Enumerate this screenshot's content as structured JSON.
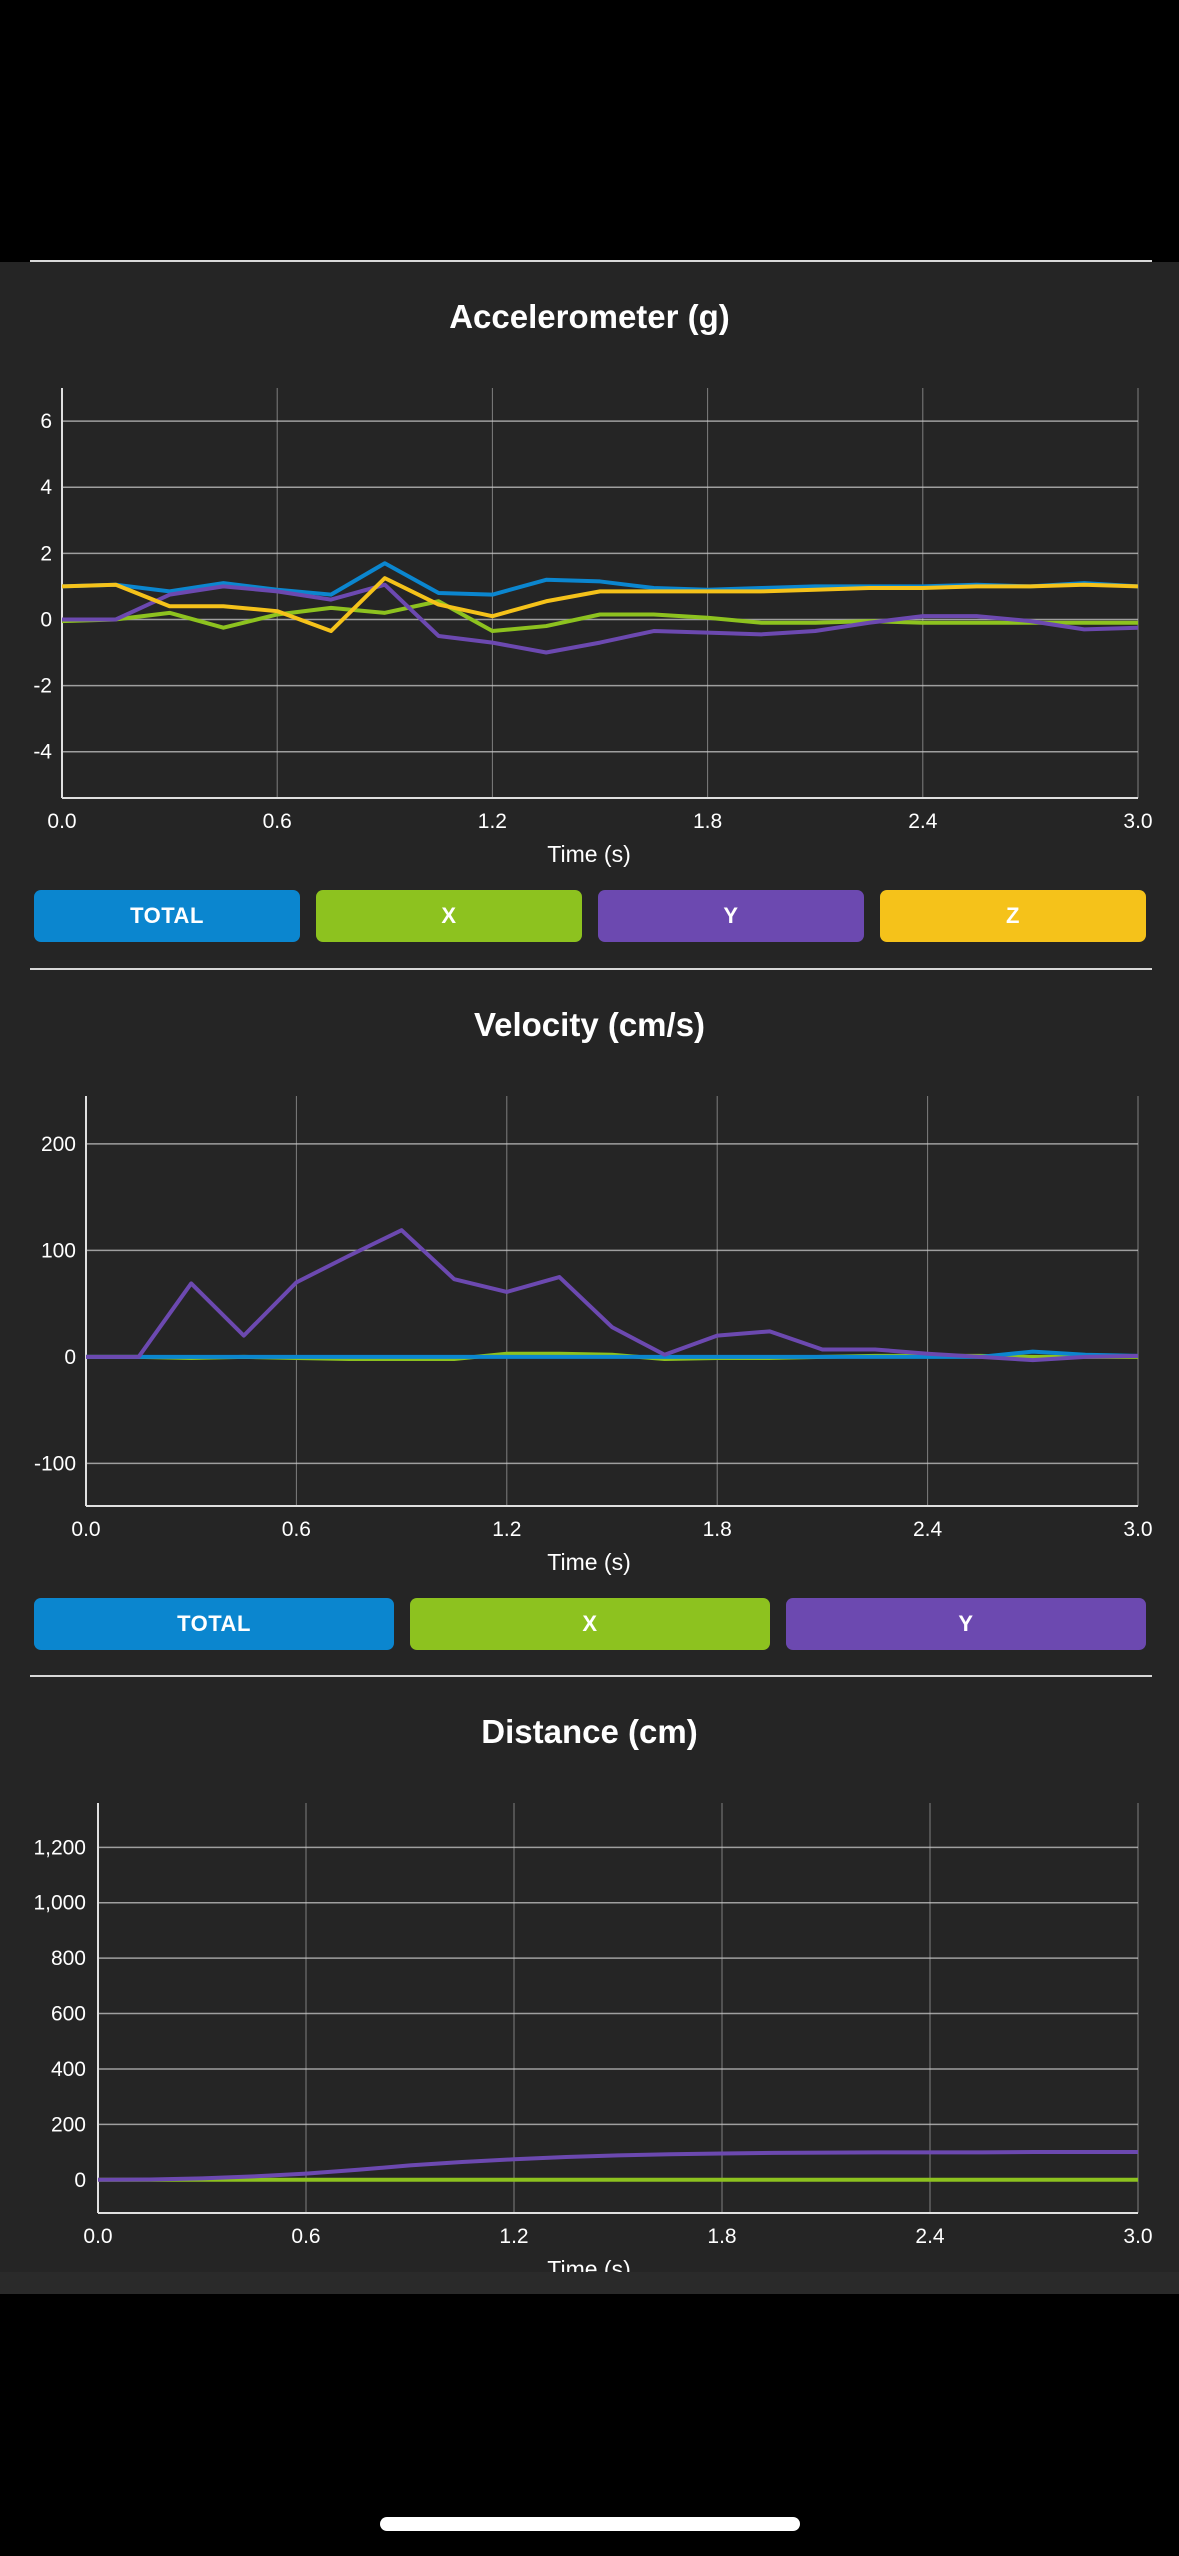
{
  "colors": {
    "total": "#0b86cf",
    "x": "#8dc21f",
    "y": "#6c49b0",
    "z": "#f5c21a",
    "panel": "#252525",
    "grid": "#c8c8c8"
  },
  "charts": [
    {
      "id": "accelerometer",
      "title": "Accelerometer (g)",
      "xlabel": "Time (s)",
      "buttons": [
        {
          "label": "TOTAL",
          "color": "#0b86cf"
        },
        {
          "label": "X",
          "color": "#8dc21f"
        },
        {
          "label": "Y",
          "color": "#6c49b0"
        },
        {
          "label": "Z",
          "color": "#f5c21a"
        }
      ]
    },
    {
      "id": "velocity",
      "title": "Velocity (cm/s)",
      "xlabel": "Time (s)",
      "buttons": [
        {
          "label": "TOTAL",
          "color": "#0b86cf"
        },
        {
          "label": "X",
          "color": "#8dc21f"
        },
        {
          "label": "Y",
          "color": "#6c49b0"
        }
      ]
    },
    {
      "id": "distance",
      "title": "Distance (cm)",
      "xlabel": "Time (s)",
      "buttons": []
    }
  ],
  "chart_data": [
    {
      "type": "line",
      "title": "Accelerometer (g)",
      "xlabel": "Time (s)",
      "ylabel": "",
      "xlim": [
        0,
        3
      ],
      "ylim": [
        -5.4,
        7
      ],
      "xticks": [
        "0.0",
        "0.6",
        "1.2",
        "1.8",
        "2.4",
        "3.0"
      ],
      "yticks": [
        "-4",
        "-2",
        "0",
        "2",
        "4",
        "6"
      ],
      "x": [
        0,
        0.15,
        0.3,
        0.45,
        0.6,
        0.75,
        0.9,
        1.05,
        1.2,
        1.35,
        1.5,
        1.65,
        1.8,
        1.95,
        2.1,
        2.25,
        2.4,
        2.55,
        2.7,
        2.85,
        3.0
      ],
      "series": [
        {
          "name": "TOTAL",
          "color": "#0b86cf",
          "values": [
            1.0,
            1.05,
            0.85,
            1.1,
            0.9,
            0.75,
            1.7,
            0.8,
            0.75,
            1.2,
            1.15,
            0.95,
            0.9,
            0.95,
            1.0,
            1.0,
            1.0,
            1.05,
            1.0,
            1.1,
            1.0
          ]
        },
        {
          "name": "X",
          "color": "#8dc21f",
          "values": [
            -0.05,
            0.0,
            0.2,
            -0.25,
            0.15,
            0.35,
            0.2,
            0.55,
            -0.35,
            -0.2,
            0.15,
            0.15,
            0.05,
            -0.1,
            -0.1,
            -0.05,
            -0.1,
            -0.1,
            -0.1,
            -0.1,
            -0.1
          ]
        },
        {
          "name": "Y",
          "color": "#6c49b0",
          "values": [
            0.0,
            0.0,
            0.75,
            1.0,
            0.85,
            0.6,
            1.05,
            -0.5,
            -0.7,
            -1.0,
            -0.7,
            -0.35,
            -0.4,
            -0.45,
            -0.35,
            -0.1,
            0.1,
            0.1,
            -0.05,
            -0.3,
            -0.25
          ]
        },
        {
          "name": "Z",
          "color": "#f5c21a",
          "values": [
            1.0,
            1.05,
            0.4,
            0.4,
            0.25,
            -0.35,
            1.25,
            0.45,
            0.1,
            0.55,
            0.85,
            0.85,
            0.85,
            0.85,
            0.9,
            0.95,
            0.95,
            1.0,
            1.0,
            1.05,
            1.0
          ]
        }
      ]
    },
    {
      "type": "line",
      "title": "Velocity (cm/s)",
      "xlabel": "Time (s)",
      "ylabel": "",
      "xlim": [
        0,
        3
      ],
      "ylim": [
        -140,
        245
      ],
      "xticks": [
        "0.0",
        "0.6",
        "1.2",
        "1.8",
        "2.4",
        "3.0"
      ],
      "yticks": [
        "-100",
        "0",
        "100",
        "200"
      ],
      "x": [
        0,
        0.15,
        0.3,
        0.45,
        0.6,
        0.75,
        0.9,
        1.05,
        1.2,
        1.35,
        1.5,
        1.65,
        1.8,
        1.95,
        2.1,
        2.25,
        2.4,
        2.55,
        2.7,
        2.85,
        3.0
      ],
      "series": [
        {
          "name": "X",
          "color": "#8dc21f",
          "values": [
            0,
            0,
            -1,
            0,
            -1,
            -2,
            -2,
            -2,
            3,
            3,
            2,
            -2,
            -1,
            -1,
            0,
            1,
            1,
            1,
            0,
            0,
            0
          ]
        },
        {
          "name": "TOTAL",
          "color": "#0b86cf",
          "values": [
            0,
            0,
            0,
            0,
            0,
            0,
            0,
            0,
            0,
            0,
            0,
            0,
            0,
            0,
            0,
            0,
            0,
            0,
            5,
            2,
            1
          ]
        },
        {
          "name": "Y",
          "color": "#6c49b0",
          "values": [
            0,
            0,
            69,
            20,
            70,
            95,
            119,
            73,
            61,
            75,
            28,
            2,
            20,
            24,
            7,
            7,
            3,
            0,
            -3,
            0,
            1
          ]
        }
      ]
    },
    {
      "type": "line",
      "title": "Distance (cm)",
      "xlabel": "Time (s)",
      "ylabel": "",
      "xlim": [
        0,
        3
      ],
      "ylim": [
        -120,
        1360
      ],
      "xticks": [
        "0.0",
        "0.6",
        "1.2",
        "1.8",
        "2.4",
        "3.0"
      ],
      "yticks": [
        "0",
        "200",
        "400",
        "600",
        "800",
        "1,000",
        "1,200"
      ],
      "x": [
        0,
        0.15,
        0.3,
        0.45,
        0.6,
        0.75,
        0.9,
        1.05,
        1.2,
        1.35,
        1.5,
        1.65,
        1.8,
        1.95,
        2.1,
        2.25,
        2.4,
        2.55,
        2.7,
        2.85,
        3.0
      ],
      "series": [
        {
          "name": "X",
          "color": "#8dc21f",
          "values": [
            0,
            0,
            0,
            0,
            0,
            0,
            0,
            0,
            0,
            0,
            0,
            0,
            0,
            0,
            0,
            0,
            0,
            0,
            0,
            0,
            0
          ]
        },
        {
          "name": "Y",
          "color": "#6c49b0",
          "values": [
            0,
            1,
            5,
            12,
            22,
            36,
            52,
            64,
            74,
            82,
            88,
            92,
            95,
            97,
            98,
            99,
            99,
            99,
            100,
            100,
            100
          ]
        }
      ]
    }
  ]
}
